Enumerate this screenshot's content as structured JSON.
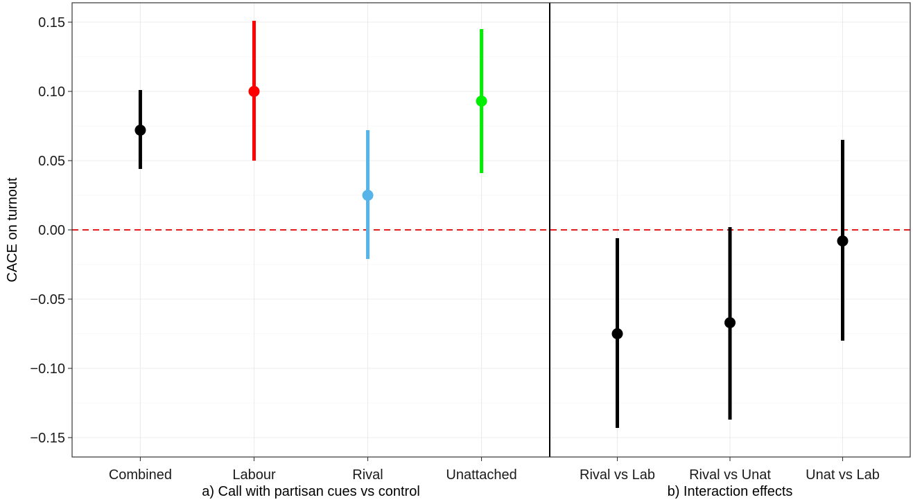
{
  "chart_data": {
    "type": "scatter",
    "subtype": "point-range",
    "ylabel": "CACE on turnout",
    "ylim": [
      -0.164,
      0.164
    ],
    "y_ticks": [
      0.15,
      0.1,
      0.05,
      0.0,
      -0.05,
      -0.1,
      -0.15
    ],
    "y_tick_labels": [
      "0.15",
      "0.10",
      "0.05",
      "0.00",
      "−0.05",
      "−0.10",
      "−0.15"
    ],
    "grid": true,
    "reference_line": {
      "y": 0,
      "color": "#e41a1c",
      "style": "dashed"
    },
    "x_groups": [
      {
        "label": "a) Call with partisan cues vs control",
        "categories": [
          "Combined",
          "Labour",
          "Rival",
          "Unattached"
        ]
      },
      {
        "label": "b) Interaction effects",
        "categories": [
          "Rival vs Lab",
          "Rival vs Unat",
          "Unat vs Lab"
        ]
      }
    ],
    "points": [
      {
        "category": "Combined",
        "group": 0,
        "estimate": 0.072,
        "lower": 0.044,
        "upper": 0.101,
        "color": "#000000"
      },
      {
        "category": "Labour",
        "group": 0,
        "estimate": 0.1,
        "lower": 0.05,
        "upper": 0.151,
        "color": "#ff0000"
      },
      {
        "category": "Rival",
        "group": 0,
        "estimate": 0.025,
        "lower": -0.021,
        "upper": 0.072,
        "color": "#56b4e9"
      },
      {
        "category": "Unattached",
        "group": 0,
        "estimate": 0.093,
        "lower": 0.041,
        "upper": 0.145,
        "color": "#00ee00"
      },
      {
        "category": "Rival vs Lab",
        "group": 1,
        "estimate": -0.075,
        "lower": -0.143,
        "upper": -0.006,
        "color": "#000000"
      },
      {
        "category": "Rival vs Unat",
        "group": 1,
        "estimate": -0.067,
        "lower": -0.137,
        "upper": 0.002,
        "color": "#000000"
      },
      {
        "category": "Unat vs Lab",
        "group": 1,
        "estimate": -0.008,
        "lower": -0.08,
        "upper": 0.065,
        "color": "#000000"
      }
    ]
  }
}
